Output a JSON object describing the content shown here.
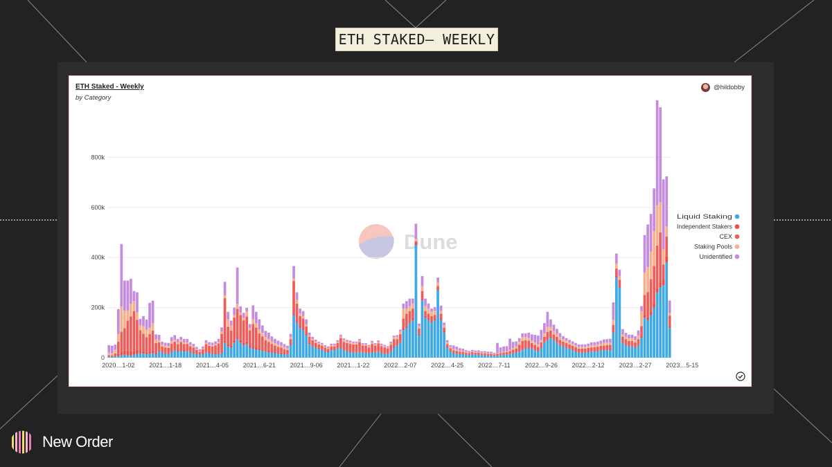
{
  "slide": {
    "title": "ETH STAKED– WEEKLY",
    "brand_name": "New Order"
  },
  "card": {
    "author": "@hildobby",
    "watermark": "Dune"
  },
  "colors": {
    "liquid_staking": "#3fa9e6",
    "independent_stakers": "#f04a45",
    "cex": "#ee5d5a",
    "staking_pools": "#f7b08a",
    "unidentified": "#c58be0"
  },
  "chart_data": {
    "type": "bar",
    "stacked": true,
    "title": "ETH Staked - Weekly",
    "subtitle": "by Category",
    "ylim": [
      0,
      1000000
    ],
    "y_ticks": [
      0,
      200000,
      400000,
      600000,
      800000
    ],
    "y_tick_labels": [
      "0",
      "200k",
      "400k",
      "600k",
      "800k"
    ],
    "grid": true,
    "legend_position": "right",
    "x_tick_labels": [
      {
        "index": 3,
        "label": "2020…1-02"
      },
      {
        "index": 18,
        "label": "2021…1-18"
      },
      {
        "index": 33,
        "label": "2021…4-05"
      },
      {
        "index": 48,
        "label": "2021…6-21"
      },
      {
        "index": 63,
        "label": "2021…9-06"
      },
      {
        "index": 78,
        "label": "2021…1-22"
      },
      {
        "index": 93,
        "label": "2022…2-07"
      },
      {
        "index": 108,
        "label": "2022…4-25"
      },
      {
        "index": 123,
        "label": "2022…7-11"
      },
      {
        "index": 138,
        "label": "2022…9-26"
      },
      {
        "index": 153,
        "label": "2022…2-12"
      },
      {
        "index": 168,
        "label": "2023…2-27"
      },
      {
        "index": 183,
        "label": "2023…5-15"
      }
    ],
    "series": [
      {
        "name": "Liquid Staking",
        "color": "#3fa9e6",
        "values": [
          5000,
          4000,
          5000,
          6000,
          10000,
          12000,
          10000,
          9000,
          12000,
          15000,
          18000,
          16000,
          14000,
          16000,
          18000,
          12000,
          26000,
          20000,
          16000,
          15000,
          22000,
          30000,
          25000,
          28000,
          24000,
          26000,
          22000,
          18000,
          14000,
          10000,
          15000,
          20000,
          18000,
          16000,
          14000,
          12000,
          20000,
          60000,
          45000,
          40000,
          60000,
          75000,
          60000,
          50000,
          55000,
          40000,
          36000,
          32000,
          30000,
          28000,
          24000,
          22000,
          20000,
          18000,
          16000,
          15000,
          14000,
          12000,
          50000,
          170000,
          140000,
          120000,
          110000,
          90000,
          55000,
          45000,
          40000,
          35000,
          30000,
          25000,
          22000,
          30000,
          30000,
          35000,
          40000,
          30000,
          25000,
          22000,
          20000,
          20000,
          24000,
          20000,
          20000,
          18000,
          22000,
          20000,
          24000,
          18000,
          16000,
          14000,
          24000,
          40000,
          50000,
          60000,
          110000,
          120000,
          140000,
          150000,
          450000,
          90000,
          230000,
          160000,
          150000,
          140000,
          150000,
          270000,
          150000,
          100000,
          40000,
          25000,
          18000,
          16000,
          14000,
          14000,
          12000,
          10000,
          14000,
          12000,
          12000,
          10000,
          10000,
          8000,
          8000,
          6000,
          8000,
          10000,
          12000,
          12000,
          14000,
          18000,
          20000,
          24000,
          30000,
          36000,
          40000,
          35000,
          30000,
          25000,
          40000,
          60000,
          70000,
          80000,
          70000,
          60000,
          50000,
          45000,
          40000,
          35000,
          30000,
          25000,
          20000,
          20000,
          20000,
          22000,
          24000,
          24000,
          26000,
          28000,
          30000,
          30000,
          30000,
          100000,
          320000,
          280000,
          60000,
          50000,
          45000,
          45000,
          40000,
          50000,
          80000,
          160000,
          150000,
          170000,
          200000,
          260000,
          280000,
          290000,
          380000,
          120000
        ]
      },
      {
        "name": "Independent Stakers",
        "color": "#f04a45",
        "values": [
          2000,
          2000,
          4000,
          8000,
          14000,
          16000,
          18000,
          16000,
          14000,
          16000,
          12000,
          10000,
          8000,
          8000,
          10000,
          6000,
          5000,
          4000,
          4000,
          4000,
          4000,
          4000,
          4000,
          5000,
          5000,
          4000,
          4000,
          4000,
          3000,
          3000,
          3000,
          4000,
          4000,
          4000,
          5000,
          5000,
          5000,
          8000,
          8000,
          8000,
          10000,
          10000,
          10000,
          9000,
          9000,
          9000,
          8000,
          8000,
          7000,
          7000,
          6000,
          6000,
          5000,
          5000,
          5000,
          5000,
          5000,
          4000,
          4000,
          6000,
          6000,
          6000,
          6000,
          5000,
          4000,
          4000,
          4000,
          4000,
          4000,
          3000,
          3000,
          3000,
          3000,
          3000,
          3000,
          3000,
          3000,
          3000,
          3000,
          3000,
          3000,
          3000,
          3000,
          3000,
          3000,
          3000,
          3000,
          3000,
          3000,
          3000,
          3000,
          4000,
          4000,
          4000,
          6000,
          6000,
          6000,
          6000,
          10000,
          6000,
          6000,
          6000,
          6000,
          6000,
          6000,
          6000,
          6000,
          5000,
          4000,
          3000,
          3000,
          3000,
          3000,
          3000,
          2000,
          2000,
          2000,
          2000,
          2000,
          2000,
          2000,
          2000,
          2000,
          2000,
          2000,
          2000,
          2000,
          2000,
          2000,
          2000,
          2000,
          2000,
          2000,
          3000,
          3000,
          3000,
          3000,
          3000,
          3000,
          3000,
          3000,
          3000,
          3000,
          3000,
          3000,
          3000,
          3000,
          3000,
          3000,
          3000,
          3000,
          3000,
          3000,
          3000,
          3000,
          3000,
          3000,
          3000,
          3000,
          3000,
          3000,
          6000,
          6000,
          6000,
          4000,
          4000,
          4000,
          4000,
          4000,
          4000,
          6000,
          10000,
          12000,
          14000,
          16000,
          18000,
          20000,
          22000,
          24000,
          8000
        ]
      },
      {
        "name": "CEX",
        "color": "#ee5d5a",
        "values": [
          3000,
          4000,
          8000,
          50000,
          80000,
          90000,
          120000,
          140000,
          160000,
          120000,
          80000,
          70000,
          60000,
          70000,
          80000,
          40000,
          30000,
          20000,
          20000,
          20000,
          30000,
          30000,
          25000,
          30000,
          25000,
          25000,
          20000,
          18000,
          14000,
          10000,
          15000,
          30000,
          25000,
          25000,
          30000,
          40000,
          70000,
          170000,
          70000,
          60000,
          90000,
          110000,
          100000,
          90000,
          100000,
          60000,
          90000,
          80000,
          60000,
          50000,
          40000,
          35000,
          30000,
          25000,
          22000,
          20000,
          15000,
          15000,
          20000,
          130000,
          70000,
          40000,
          40000,
          30000,
          25000,
          20000,
          15000,
          14000,
          14000,
          12000,
          10000,
          12000,
          12000,
          20000,
          35000,
          30000,
          30000,
          30000,
          30000,
          30000,
          35000,
          25000,
          25000,
          20000,
          30000,
          25000,
          30000,
          25000,
          22000,
          20000,
          25000,
          30000,
          20000,
          30000,
          40000,
          50000,
          40000,
          40000,
          5000,
          20000,
          30000,
          20000,
          20000,
          20000,
          15000,
          10000,
          20000,
          15000,
          10000,
          10000,
          8000,
          8000,
          7000,
          7000,
          6000,
          6000,
          6000,
          6000,
          6000,
          5000,
          5000,
          5000,
          5000,
          5000,
          6000,
          6000,
          7000,
          8000,
          10000,
          12000,
          15000,
          25000,
          35000,
          30000,
          25000,
          20000,
          18000,
          15000,
          18000,
          20000,
          30000,
          25000,
          20000,
          20000,
          18000,
          16000,
          15000,
          15000,
          14000,
          14000,
          13000,
          13000,
          13000,
          14000,
          14000,
          15000,
          15000,
          16000,
          16000,
          17000,
          18000,
          25000,
          30000,
          25000,
          20000,
          20000,
          18000,
          18000,
          17000,
          20000,
          40000,
          80000,
          100000,
          130000,
          150000,
          170000,
          200000,
          60000,
          80000,
          40000
        ]
      },
      {
        "name": "Staking Pools",
        "color": "#f7b08a",
        "values": [
          10000,
          8000,
          15000,
          30000,
          100000,
          70000,
          40000,
          50000,
          40000,
          30000,
          20000,
          30000,
          30000,
          25000,
          30000,
          15000,
          10000,
          8000,
          8000,
          8000,
          10000,
          8000,
          7000,
          8000,
          7000,
          6000,
          6000,
          5000,
          4000,
          3000,
          4000,
          5000,
          5000,
          5000,
          6000,
          6000,
          10000,
          10000,
          30000,
          20000,
          10000,
          20000,
          10000,
          10000,
          20000,
          10000,
          20000,
          18000,
          16000,
          14000,
          12000,
          12000,
          10000,
          10000,
          10000,
          8000,
          8000,
          6000,
          8000,
          10000,
          15000,
          10000,
          10000,
          8000,
          6000,
          6000,
          6000,
          5000,
          5000,
          4000,
          4000,
          5000,
          5000,
          6000,
          8000,
          8000,
          7000,
          7000,
          6000,
          6000,
          6000,
          5000,
          5000,
          5000,
          6000,
          5000,
          6000,
          5000,
          5000,
          4000,
          6000,
          8000,
          10000,
          12000,
          40000,
          20000,
          20000,
          20000,
          10000,
          10000,
          20000,
          20000,
          20000,
          18000,
          16000,
          14000,
          12000,
          10000,
          8000,
          6000,
          5000,
          5000,
          4000,
          4000,
          4000,
          3000,
          3000,
          3000,
          3000,
          3000,
          3000,
          3000,
          3000,
          3000,
          3000,
          3000,
          4000,
          4000,
          5000,
          6000,
          8000,
          12000,
          15000,
          13000,
          12000,
          10000,
          10000,
          10000,
          10000,
          15000,
          20000,
          15000,
          14000,
          12000,
          12000,
          10000,
          10000,
          8000,
          8000,
          7000,
          7000,
          7000,
          7000,
          7000,
          8000,
          8000,
          8000,
          9000,
          10000,
          10000,
          10000,
          20000,
          20000,
          15000,
          10000,
          10000,
          10000,
          10000,
          10000,
          15000,
          60000,
          90000,
          100000,
          110000,
          140000,
          160000,
          120000,
          60000,
          40000,
          10000
        ]
      },
      {
        "name": "Unidentified",
        "color": "#c58be0",
        "values": [
          30000,
          30000,
          20000,
          100000,
          250000,
          120000,
          120000,
          100000,
          40000,
          80000,
          25000,
          40000,
          40000,
          100000,
          90000,
          20000,
          20000,
          12000,
          12000,
          12000,
          16000,
          18000,
          14000,
          12000,
          14000,
          14000,
          10000,
          10000,
          8000,
          8000,
          8000,
          11000,
          10000,
          10000,
          10000,
          12000,
          16000,
          55000,
          30000,
          20000,
          30000,
          145000,
          25000,
          20000,
          15000,
          15000,
          55000,
          45000,
          40000,
          30000,
          25000,
          25000,
          20000,
          17000,
          15000,
          14000,
          12000,
          11000,
          13000,
          50000,
          30000,
          20000,
          20000,
          20000,
          10000,
          8000,
          7000,
          6000,
          6000,
          6000,
          6000,
          6000,
          6000,
          6000,
          6000,
          6000,
          6000,
          6000,
          5000,
          5000,
          6000,
          5000,
          5000,
          5000,
          6000,
          5000,
          6000,
          5000,
          5000,
          5000,
          6000,
          6000,
          6000,
          6000,
          20000,
          30000,
          30000,
          20000,
          60000,
          10000,
          40000,
          30000,
          20000,
          12000,
          15000,
          20000,
          20000,
          10000,
          8000,
          6000,
          15000,
          12000,
          10000,
          8000,
          6000,
          6000,
          6000,
          6000,
          6000,
          6000,
          6000,
          6000,
          6000,
          4000,
          40000,
          20000,
          20000,
          20000,
          45000,
          25000,
          20000,
          15000,
          15000,
          15000,
          20000,
          25000,
          30000,
          35000,
          40000,
          40000,
          60000,
          30000,
          25000,
          20000,
          15000,
          12000,
          10000,
          10000,
          10000,
          10000,
          10000,
          10000,
          10000,
          10000,
          12000,
          12000,
          12000,
          12000,
          14000,
          14000,
          14000,
          70000,
          40000,
          25000,
          20000,
          15000,
          15000,
          15000,
          15000,
          20000,
          20000,
          150000,
          170000,
          150000,
          170000,
          420000,
          380000,
          280000,
          200000,
          50000
        ]
      }
    ]
  }
}
